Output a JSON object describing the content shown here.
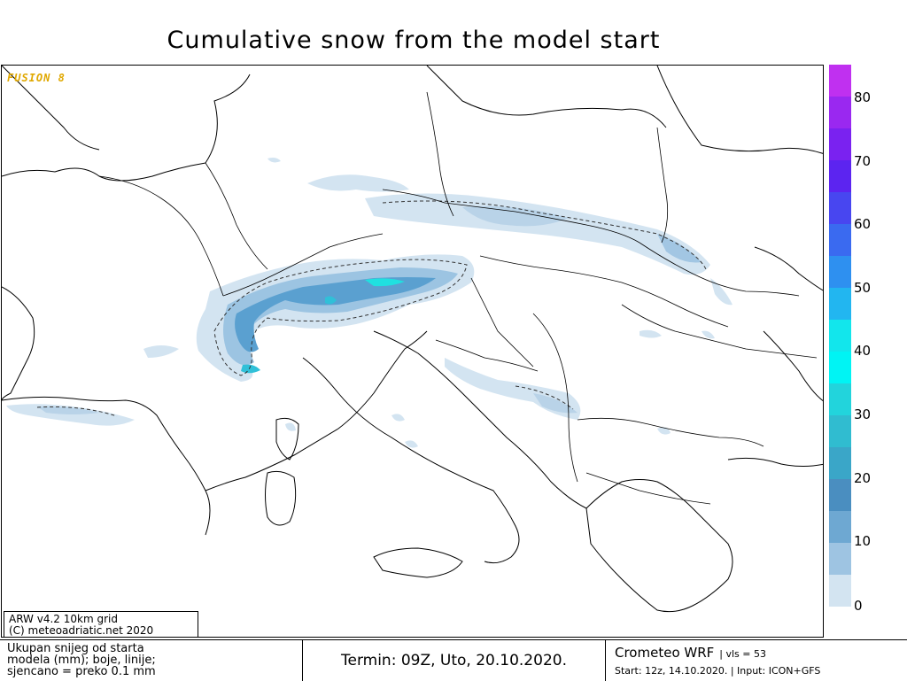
{
  "title": "Cumulative snow from the model start",
  "brand": "FUSION 8",
  "model_box": {
    "line1": "ARW v4.2 10km grid",
    "line2": "(C) meteoadriatic.net 2020"
  },
  "legend": {
    "ticks": [
      "80",
      "70",
      "60",
      "50",
      "40",
      "30",
      "20",
      "10",
      "0"
    ],
    "colors": [
      "#ccdfee",
      "#b3d0e6",
      "#9ac2de",
      "#82b3d6",
      "#69a4ce",
      "#4f96c6",
      "#3ba6c9",
      "#2eb6cc",
      "#22c7cf",
      "#19d7d7",
      "#10e8e8",
      "#00f6f6",
      "#25c6f2",
      "#2ea5f2",
      "#3f84f2",
      "#4f62f2",
      "#5d40f2",
      "#7333f2",
      "#8f33f2",
      "#b033f2",
      "#c93ae8",
      "#d83ee8",
      "#e64ef0",
      "#e06cf2",
      "#e088f2",
      "#e07bf2",
      "#e062f2",
      "#d93ef0",
      "#c23ef0",
      "#c23ef0",
      "#c23ef0",
      "#c23ef0",
      "#c23ef0",
      "#c23ef0",
      "#c23ef0",
      "#c23ef0",
      "#c23ef0"
    ]
  },
  "footer": {
    "left_line1": "Ukupan snijeg od starta",
    "left_line2": "modela (mm); boje, linije;",
    "left_line3": "sjencano = preko 0.1 mm",
    "termin": "Termin: 09Z, Uto, 20.10.2020.",
    "model": "Crometeo WRF",
    "vls": "| vls = 53",
    "start": "Start: 12z, 14.10.2020. | Input: ICON+GFS"
  }
}
